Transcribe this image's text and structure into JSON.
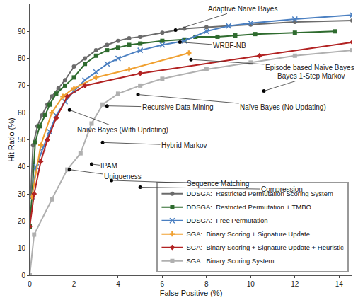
{
  "chart_data": {
    "type": "line",
    "xlabel": "False Positive (%)",
    "ylabel": "Hit Ratio (%)",
    "xlim": [
      0,
      14.6
    ],
    "ylim": [
      0,
      100
    ],
    "xticks": [
      0,
      2,
      4,
      6,
      8,
      10,
      12,
      14
    ],
    "yticks": [
      0,
      10,
      20,
      30,
      40,
      50,
      60,
      70,
      80,
      90
    ],
    "grid": false,
    "legend": "lower right",
    "series": [
      {
        "name": "DDSGA:  Restricted Permutation Scoring System",
        "color": "#6b6b6b",
        "marker": "circle",
        "line_style": "solid",
        "x": [
          0.05,
          0.15,
          0.35,
          0.55,
          0.8,
          1.0,
          1.3,
          1.6,
          2.0,
          2.5,
          3.0,
          3.5,
          4.0,
          4.5,
          5.0,
          6.0,
          7.0,
          8.0,
          10.0,
          12.0,
          14.6
        ],
        "values": [
          30,
          48,
          55,
          59,
          63,
          66,
          69,
          72,
          77,
          80,
          83,
          85,
          86.5,
          87.5,
          88,
          89.5,
          91,
          91.5,
          92.5,
          93.5,
          94
        ]
      },
      {
        "name": "DDSGA:  Restricted Permutation + TMBO",
        "color": "#2e6b2e",
        "marker": "square",
        "line_style": "solid",
        "x": [
          0,
          0.1,
          0.25,
          0.45,
          0.7,
          0.9,
          1.2,
          1.6,
          2.0,
          2.5,
          3.0,
          3.5,
          4.0,
          4.5,
          5.0,
          6.0,
          7.0,
          7.5,
          8.5,
          9.3,
          10.2,
          12.0,
          13.8
        ],
        "values": [
          18,
          29,
          49,
          55,
          59,
          63,
          67,
          70,
          73,
          78,
          81,
          83,
          84,
          85,
          85.5,
          86.5,
          87,
          88,
          88,
          88.5,
          89,
          89.5,
          90
        ]
      },
      {
        "name": "DDSGA:  Free Permutation",
        "color": "#4a7fc1",
        "marker": "x",
        "line_style": "solid",
        "x": [
          0.1,
          0.3,
          0.6,
          0.9,
          1.2,
          1.6,
          2.0,
          2.5,
          3.0,
          3.5,
          4.0,
          5.0,
          6.0,
          7.0,
          8.0,
          9.0,
          10.0,
          12.0,
          14.6
        ],
        "values": [
          29,
          40,
          47,
          53,
          59,
          64,
          68,
          72,
          75,
          78,
          80,
          83,
          85,
          86.5,
          90,
          92,
          93,
          94.5,
          96
        ]
      },
      {
        "name": "SGA:  Binary Scoring + Signature Update",
        "color": "#f0a030",
        "marker": "cross",
        "line_style": "solid",
        "x": [
          0.1,
          0.5,
          1.0,
          1.5,
          2.0,
          3.0,
          4.5,
          7.2
        ],
        "values": [
          29,
          48,
          60,
          66,
          69,
          73,
          76,
          82
        ]
      },
      {
        "name": "SGA:  Binary Scoring + Signature Update + Heuristic",
        "color": "#b22222",
        "marker": "diamond",
        "line_style": "solid",
        "x": [
          0,
          0.2,
          0.5,
          0.8,
          1.2,
          1.7,
          2.5,
          5.0,
          10.4,
          14.6
        ],
        "values": [
          18,
          30,
          42,
          50,
          58,
          66,
          70,
          74.5,
          81,
          86
        ]
      },
      {
        "name": "SGA:  Binary Scoring System",
        "color": "#b0b0b0",
        "marker": "square",
        "line_style": "solid",
        "x": [
          0,
          0.2,
          1.0,
          1.7,
          2.3,
          2.8,
          3.3,
          4.0,
          5.0,
          6.0,
          8.0,
          10.0,
          12.0,
          14.6
        ],
        "values": [
          0,
          15,
          28,
          39,
          45,
          56,
          63,
          67,
          70,
          72.5,
          76,
          78.5,
          81,
          83
        ]
      }
    ],
    "annotations": [
      {
        "text": "Adaptive Naïve Bayes",
        "x": 6.6,
        "y": 90.5
      },
      {
        "text": "WRBF-NB",
        "x": 6.8,
        "y": 86
      },
      {
        "text": "Episode based Naïve Bayes",
        "x": 7.3,
        "y": 79.6
      },
      {
        "text": "Bayes 1-Step Markov",
        "x": 10.6,
        "y": 68
      },
      {
        "text": "Naïve Bayes (No Updating)",
        "x": 4.9,
        "y": 66.7
      },
      {
        "text": "Recursive Data Mining",
        "x": 3.5,
        "y": 62.5
      },
      {
        "text": "Naïve Bayes (With Updating)",
        "x": 1.8,
        "y": 61
      },
      {
        "text": "Hybrid Markov",
        "x": 3.3,
        "y": 49
      },
      {
        "text": "IPAM",
        "x": 2.8,
        "y": 41
      },
      {
        "text": "Uniqueness",
        "x": 1.8,
        "y": 39
      },
      {
        "text": "Sequence Matching",
        "x": 3.7,
        "y": 35
      },
      {
        "text": "Compression",
        "x": 5.0,
        "y": 32.5
      }
    ]
  }
}
